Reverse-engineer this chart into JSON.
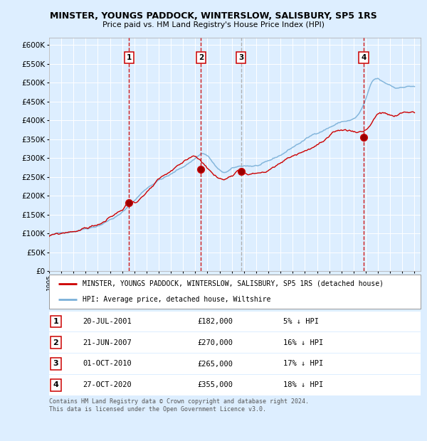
{
  "title": "MINSTER, YOUNGS PADDOCK, WINTERSLOW, SALISBURY, SP5 1RS",
  "subtitle": "Price paid vs. HM Land Registry's House Price Index (HPI)",
  "bg_color": "#ddeeff",
  "plot_bg_color": "#ddeeff",
  "grid_color": "#ffffff",
  "hpi_color": "#7ab0d8",
  "price_color": "#cc0000",
  "ylim": [
    0,
    620000
  ],
  "yticks": [
    0,
    50000,
    100000,
    150000,
    200000,
    250000,
    300000,
    350000,
    400000,
    450000,
    500000,
    550000,
    600000
  ],
  "sale_dates_decimal": [
    2001.55,
    2007.47,
    2010.75,
    2020.82
  ],
  "sale_prices": [
    182000,
    270000,
    265000,
    355000
  ],
  "sale_labels": [
    "1",
    "2",
    "3",
    "4"
  ],
  "sale_line_colors": [
    "#cc0000",
    "#cc0000",
    "#aaaaaa",
    "#cc0000"
  ],
  "legend_entries": [
    "MINSTER, YOUNGS PADDOCK, WINTERSLOW, SALISBURY, SP5 1RS (detached house)",
    "HPI: Average price, detached house, Wiltshire"
  ],
  "table_rows": [
    [
      "1",
      "20-JUL-2001",
      "£182,000",
      "5% ↓ HPI"
    ],
    [
      "2",
      "21-JUN-2007",
      "£270,000",
      "16% ↓ HPI"
    ],
    [
      "3",
      "01-OCT-2010",
      "£265,000",
      "17% ↓ HPI"
    ],
    [
      "4",
      "27-OCT-2020",
      "£355,000",
      "18% ↓ HPI"
    ]
  ],
  "footer": "Contains HM Land Registry data © Crown copyright and database right 2024.\nThis data is licensed under the Open Government Licence v3.0.",
  "xmin": 1995,
  "xmax": 2025.5
}
